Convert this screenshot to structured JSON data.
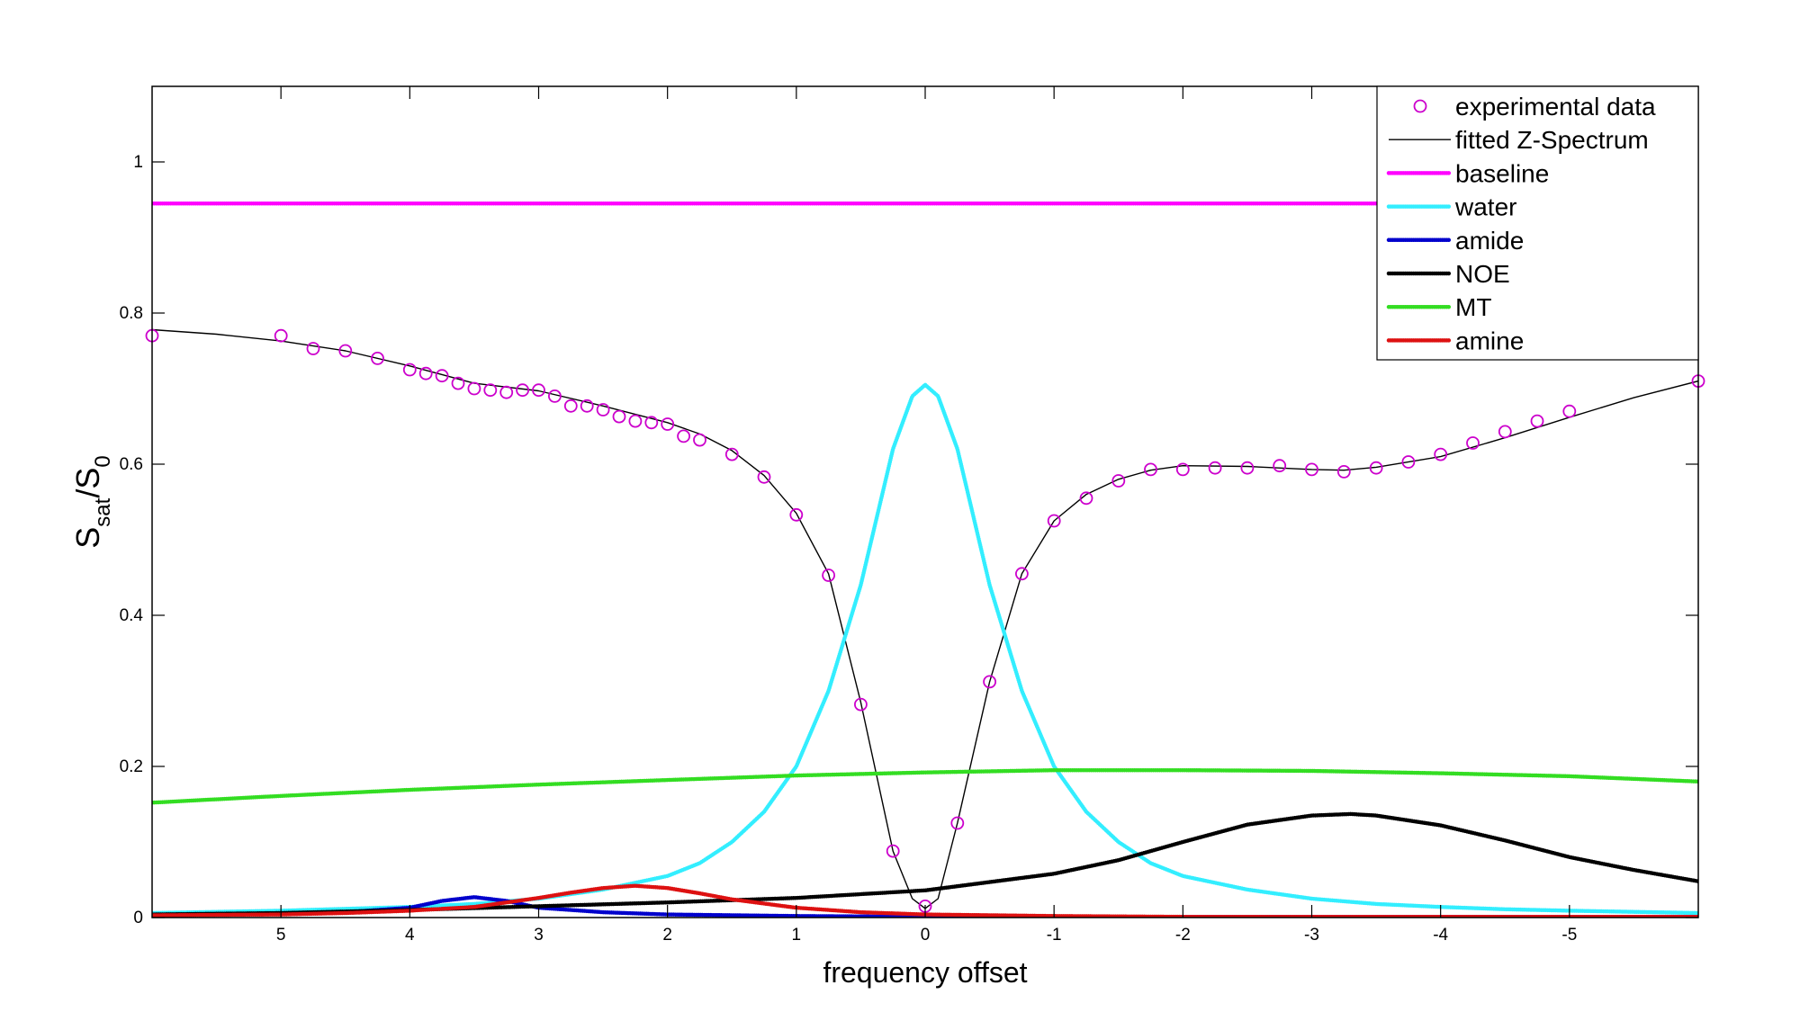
{
  "chart_data": {
    "type": "line",
    "title": "",
    "xlabel": "frequency offset",
    "ylabel_main": "S",
    "ylabel_sub1": "sat",
    "ylabel_mid": "/S",
    "ylabel_sub2": "0",
    "xlim": [
      6,
      -6
    ],
    "ylim": [
      0,
      1.1
    ],
    "x_reversed": true,
    "grid": false,
    "legend_placement": "top-right",
    "x_ticks": [
      5,
      4,
      3,
      2,
      1,
      0,
      -1,
      -2,
      -3,
      -4,
      -5
    ],
    "x_tick_labels": [
      "5",
      "4",
      "3",
      "2",
      "1",
      "0",
      "-1",
      "-2",
      "-3",
      "-4",
      "-5"
    ],
    "y_ticks": [
      0,
      0.2,
      0.4,
      0.6,
      0.8,
      1
    ],
    "y_tick_labels": [
      "0",
      "0.2",
      "0.4",
      "0.6",
      "0.8",
      "1"
    ],
    "experimental_data": {
      "name": "experimental data",
      "color": "#cc00cc",
      "x": [
        6,
        5,
        4.75,
        4.5,
        4.25,
        4,
        3.875,
        3.75,
        3.625,
        3.5,
        3.375,
        3.25,
        3.125,
        3,
        2.875,
        2.75,
        2.625,
        2.5,
        2.375,
        2.25,
        2.125,
        2,
        1.875,
        1.75,
        1.5,
        1.25,
        1,
        0.75,
        0.5,
        0.25,
        0,
        -0.25,
        -0.5,
        -0.75,
        -1,
        -1.25,
        -1.5,
        -1.75,
        -2,
        -2.25,
        -2.5,
        -2.75,
        -3,
        -3.25,
        -3.5,
        -3.75,
        -4,
        -4.25,
        -4.5,
        -4.75,
        -5,
        -6
      ],
      "y": [
        0.77,
        0.77,
        0.753,
        0.75,
        0.74,
        0.725,
        0.72,
        0.717,
        0.707,
        0.7,
        0.698,
        0.695,
        0.698,
        0.698,
        0.69,
        0.677,
        0.677,
        0.672,
        0.663,
        0.657,
        0.655,
        0.653,
        0.637,
        0.632,
        0.613,
        0.583,
        0.533,
        0.453,
        0.282,
        0.088,
        0.015,
        0.125,
        0.312,
        0.455,
        0.525,
        0.555,
        0.578,
        0.593,
        0.593,
        0.595,
        0.595,
        0.598,
        0.593,
        0.59,
        0.595,
        0.603,
        0.613,
        0.628,
        0.643,
        0.657,
        0.67,
        0.71
      ]
    },
    "series": [
      {
        "name": "fitted Z-Spectrum",
        "color": "#000000",
        "style": "solid",
        "x": [
          6,
          5.5,
          5,
          4.5,
          4,
          3.5,
          3,
          2.5,
          2,
          1.75,
          1.5,
          1.25,
          1,
          0.75,
          0.5,
          0.25,
          0.1,
          0,
          -0.1,
          -0.25,
          -0.5,
          -0.75,
          -1,
          -1.25,
          -1.5,
          -1.75,
          -2,
          -2.5,
          -3,
          -3.25,
          -3.5,
          -4,
          -4.5,
          -5,
          -5.5,
          -6
        ],
        "y": [
          0.778,
          0.772,
          0.763,
          0.75,
          0.73,
          0.707,
          0.697,
          0.677,
          0.655,
          0.64,
          0.618,
          0.585,
          0.535,
          0.455,
          0.285,
          0.088,
          0.025,
          0.012,
          0.025,
          0.125,
          0.312,
          0.455,
          0.525,
          0.56,
          0.58,
          0.592,
          0.598,
          0.597,
          0.593,
          0.592,
          0.596,
          0.61,
          0.635,
          0.662,
          0.688,
          0.71
        ]
      },
      {
        "name": "baseline",
        "color": "#ff00ff",
        "style": "dotted",
        "x": [
          6,
          -6
        ],
        "y": [
          0.945,
          0.945
        ]
      },
      {
        "name": "water",
        "color": "#33eeff",
        "style": "dotted",
        "x": [
          6,
          5,
          4,
          3.5,
          3,
          2.5,
          2,
          1.75,
          1.5,
          1.25,
          1,
          0.75,
          0.5,
          0.25,
          0.1,
          0,
          -0.1,
          -0.25,
          -0.5,
          -0.75,
          -1,
          -1.25,
          -1.5,
          -1.75,
          -2,
          -2.5,
          -3,
          -3.5,
          -4,
          -4.5,
          -5,
          -6
        ],
        "y": [
          0.006,
          0.009,
          0.014,
          0.018,
          0.025,
          0.037,
          0.055,
          0.072,
          0.1,
          0.14,
          0.2,
          0.3,
          0.44,
          0.62,
          0.69,
          0.705,
          0.69,
          0.62,
          0.44,
          0.3,
          0.2,
          0.14,
          0.1,
          0.072,
          0.055,
          0.037,
          0.025,
          0.018,
          0.014,
          0.011,
          0.009,
          0.006
        ]
      },
      {
        "name": "amide",
        "color": "#0000cc",
        "style": "dotted",
        "x": [
          6,
          5,
          4.5,
          4,
          3.75,
          3.5,
          3.25,
          3,
          2.5,
          2,
          1,
          0,
          -2,
          -4,
          -6
        ],
        "y": [
          0.003,
          0.005,
          0.007,
          0.013,
          0.022,
          0.027,
          0.022,
          0.013,
          0.007,
          0.004,
          0.002,
          0.001,
          0.001,
          0.001,
          0.001
        ]
      },
      {
        "name": "NOE",
        "color": "#000000",
        "style": "dotted",
        "x": [
          6,
          5,
          4,
          3,
          2,
          1,
          0,
          -1,
          -1.5,
          -2,
          -2.5,
          -3,
          -3.3,
          -3.5,
          -4,
          -4.5,
          -5,
          -5.5,
          -6
        ],
        "y": [
          0.004,
          0.006,
          0.01,
          0.015,
          0.02,
          0.026,
          0.036,
          0.058,
          0.076,
          0.1,
          0.123,
          0.135,
          0.137,
          0.135,
          0.122,
          0.102,
          0.08,
          0.063,
          0.048
        ]
      },
      {
        "name": "MT",
        "color": "#33dd22",
        "style": "dotted",
        "x": [
          6,
          5,
          4,
          3,
          2,
          1,
          0,
          -1,
          -2,
          -3,
          -4,
          -5,
          -6
        ],
        "y": [
          0.152,
          0.161,
          0.169,
          0.176,
          0.182,
          0.188,
          0.192,
          0.195,
          0.195,
          0.194,
          0.191,
          0.187,
          0.18
        ]
      },
      {
        "name": "amine",
        "color": "#dd1111",
        "style": "dotted",
        "x": [
          6,
          5,
          4.5,
          4,
          3.5,
          3,
          2.75,
          2.5,
          2.25,
          2,
          1.75,
          1.5,
          1,
          0.5,
          0,
          -1,
          -2,
          -4,
          -6
        ],
        "y": [
          0.003,
          0.004,
          0.006,
          0.009,
          0.014,
          0.026,
          0.033,
          0.039,
          0.042,
          0.039,
          0.032,
          0.024,
          0.013,
          0.007,
          0.004,
          0.002,
          0.001,
          0.001,
          0.001
        ]
      }
    ],
    "legend": [
      {
        "label": "experimental data",
        "marker": "circle",
        "color": "#cc00cc"
      },
      {
        "label": "fitted Z-Spectrum",
        "marker": "solid",
        "color": "#000000"
      },
      {
        "label": "baseline",
        "marker": "dotted",
        "color": "#ff00ff"
      },
      {
        "label": "water",
        "marker": "dotted",
        "color": "#33eeff"
      },
      {
        "label": "amide",
        "marker": "dotted",
        "color": "#0000cc"
      },
      {
        "label": "NOE",
        "marker": "dotted",
        "color": "#000000"
      },
      {
        "label": "MT",
        "marker": "dotted",
        "color": "#33dd22"
      },
      {
        "label": "amine",
        "marker": "dotted",
        "color": "#dd1111"
      }
    ]
  }
}
